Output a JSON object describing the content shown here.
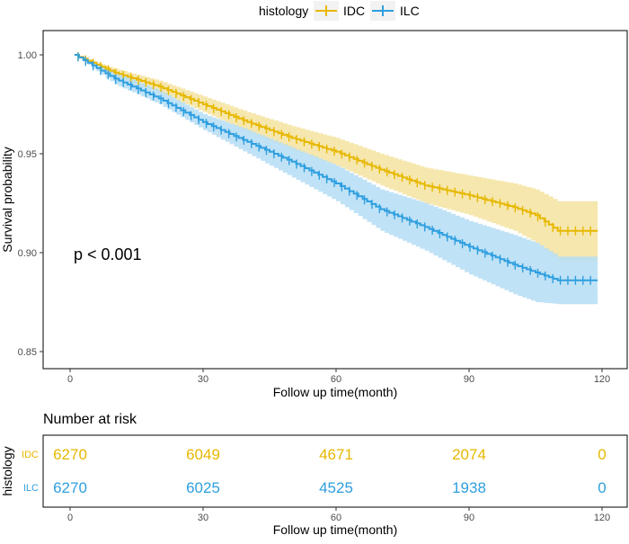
{
  "colors": {
    "idc": "#E7B800",
    "ilc": "#2E9FDF",
    "idc_band": "#F5E3A0",
    "ilc_band": "#B5DDF4"
  },
  "legend": {
    "title": "histology",
    "items": [
      "IDC",
      "ILC"
    ]
  },
  "chart_data": {
    "type": "line",
    "title": "",
    "xlabel": "Follow up time(month)",
    "ylabel": "Survival probability",
    "xlim": [
      0,
      120
    ],
    "ylim": [
      0.85,
      1.0
    ],
    "xticks": [
      "0",
      "30",
      "60",
      "90",
      "120"
    ],
    "yticks": [
      "0.85",
      "0.90",
      "0.95",
      "1.00"
    ],
    "annotation": "p < 0.001",
    "series": [
      {
        "name": "IDC",
        "x": [
          1,
          10,
          20,
          30,
          40,
          50,
          60,
          70,
          80,
          90,
          100,
          105,
          110,
          119
        ],
        "y": [
          1.0,
          0.991,
          0.984,
          0.975,
          0.966,
          0.958,
          0.951,
          0.942,
          0.934,
          0.929,
          0.923,
          0.919,
          0.911,
          0.911
        ],
        "lower": [
          1.0,
          0.989,
          0.981,
          0.971,
          0.961,
          0.952,
          0.944,
          0.934,
          0.925,
          0.919,
          0.911,
          0.905,
          0.896,
          0.896
        ],
        "upper": [
          1.0,
          0.993,
          0.987,
          0.979,
          0.971,
          0.964,
          0.958,
          0.95,
          0.943,
          0.939,
          0.935,
          0.932,
          0.926,
          0.926
        ]
      },
      {
        "name": "ILC",
        "x": [
          1,
          10,
          20,
          30,
          40,
          50,
          60,
          70,
          80,
          90,
          100,
          105,
          110,
          119
        ],
        "y": [
          1.0,
          0.988,
          0.978,
          0.966,
          0.956,
          0.946,
          0.935,
          0.922,
          0.913,
          0.903,
          0.894,
          0.89,
          0.886,
          0.886
        ],
        "lower": [
          1.0,
          0.985,
          0.975,
          0.962,
          0.95,
          0.938,
          0.926,
          0.911,
          0.901,
          0.889,
          0.879,
          0.875,
          0.874,
          0.874
        ],
        "upper": [
          1.0,
          0.991,
          0.982,
          0.97,
          0.962,
          0.953,
          0.944,
          0.932,
          0.925,
          0.916,
          0.909,
          0.905,
          0.898,
          0.898
        ]
      }
    ]
  },
  "risk_table": {
    "title": "Number at risk",
    "ylabel": "histology",
    "xlabel": "Follow up time(month)",
    "xticks": [
      "0",
      "30",
      "60",
      "90",
      "120"
    ],
    "times": [
      0,
      30,
      60,
      90,
      120
    ],
    "rows": [
      {
        "label": "IDC",
        "values": [
          "6270",
          "6049",
          "4671",
          "2074",
          "0"
        ]
      },
      {
        "label": "ILC",
        "values": [
          "6270",
          "6025",
          "4525",
          "1938",
          "0"
        ]
      }
    ]
  }
}
